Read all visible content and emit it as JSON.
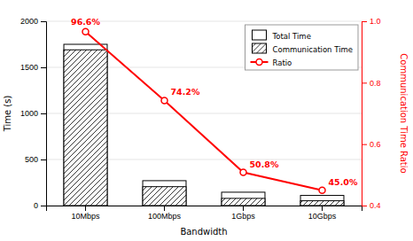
{
  "chart_data": {
    "type": "bar",
    "categories": [
      "10Mbps",
      "100Mbps",
      "1Gbps",
      "10Gbps"
    ],
    "series": [
      {
        "name": "Total Time",
        "type": "bar",
        "color": "#ffffff",
        "values": [
          1750,
          270,
          145,
          110
        ]
      },
      {
        "name": "Communication Time",
        "type": "bar",
        "color": "#ffffff",
        "values": [
          1690,
          205,
          78,
          52
        ]
      },
      {
        "name": "Ratio",
        "type": "line",
        "axis": "y2",
        "color": "#ff0000",
        "marker": "circle",
        "data_labels": true,
        "values": [
          0.966,
          0.742,
          0.508,
          0.45
        ],
        "value_labels": [
          "96.6%",
          "74.2%",
          "50.8%",
          "45.0%"
        ]
      }
    ],
    "x_label": "Bandwidth",
    "y_label": "Time (s)",
    "y2_label": "Communication Time Ratio",
    "ylim": [
      0,
      2000
    ],
    "yticks": [
      0,
      500,
      1000,
      1500,
      2000
    ],
    "y2lim": [
      0.4,
      1.0
    ],
    "y2ticks": [
      0.4,
      0.6,
      0.8,
      {
        "value": 1.0,
        "label": "1.0"
      }
    ],
    "legend": "upper right"
  }
}
